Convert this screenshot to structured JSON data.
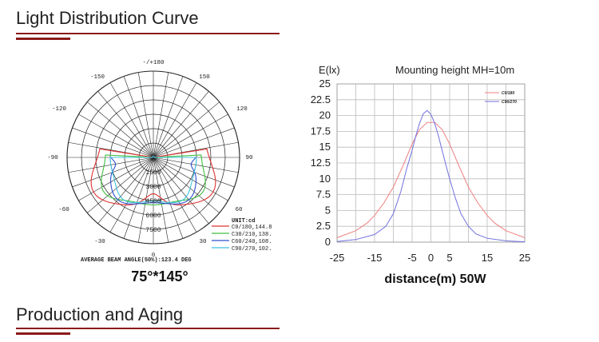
{
  "sections": {
    "light_distribution_title": "Light Distribution Curve",
    "production_title": "Production and Aging"
  },
  "polar": {
    "angle_labels": [
      "-/+180",
      "-150",
      "150",
      "-120",
      "120",
      "-90",
      "90",
      "-60",
      "60",
      "-30",
      "30",
      "0"
    ],
    "intensity_labels": [
      "1500",
      "3000",
      "4500",
      "6000",
      "7500"
    ],
    "unit": "UNIT:cd",
    "legend": [
      {
        "label": "C0/180,144.8",
        "color": "#e03030"
      },
      {
        "label": "C30/210,138.",
        "color": "#40c040"
      },
      {
        "label": "C60/240,108.",
        "color": "#3050d0"
      },
      {
        "label": "C90/270,102.",
        "color": "#40c0e0"
      }
    ],
    "beam_angle": "AVERAGE BEAM ANGLE(50%):123.4 DEG",
    "caption": "75°*145°"
  },
  "chart_data": {
    "type": "line",
    "title": "Mounting height  MH=10m",
    "ylabel": "E(lx)",
    "xlabel": "distance(m) 50W",
    "xlim": [
      -25,
      25
    ],
    "ylim": [
      0,
      25
    ],
    "x_ticks": [
      "-25",
      "-15",
      "-5",
      "0",
      "5",
      "15",
      "25"
    ],
    "x_tick_values": [
      -25,
      -15,
      -5,
      0,
      5,
      15,
      25
    ],
    "y_ticks": [
      "25",
      "22.5",
      "20",
      "17.5",
      "15",
      "12.5",
      "10",
      "7.5",
      "5",
      "2.5",
      "0"
    ],
    "y_tick_values": [
      25,
      22.5,
      20,
      17.5,
      15,
      12.5,
      10,
      7.5,
      5,
      2.5,
      0
    ],
    "grid": true,
    "legend_position": "top-right",
    "series": [
      {
        "name": "C0/180",
        "color": "#f08080",
        "x": [
          -25,
          -20,
          -17,
          -15,
          -12.5,
          -10,
          -7.5,
          -5,
          -3,
          -1,
          1,
          3,
          5,
          7.5,
          10,
          12.5,
          15,
          17,
          20,
          25
        ],
        "y": [
          0.7,
          1.8,
          3.0,
          4.2,
          6.2,
          8.7,
          12.0,
          15.5,
          17.8,
          18.9,
          18.9,
          17.8,
          15.5,
          12.0,
          8.7,
          6.2,
          4.2,
          3.0,
          1.8,
          0.7
        ]
      },
      {
        "name": "C90/270",
        "color": "#7070e0",
        "x": [
          -25,
          -20,
          -15,
          -12,
          -10,
          -8,
          -6.5,
          -5,
          -4,
          -3,
          -2,
          -1,
          0,
          1,
          2,
          3,
          4,
          5,
          6.5,
          8,
          10,
          12,
          15,
          20,
          25
        ],
        "y": [
          0.1,
          0.4,
          1.2,
          2.5,
          4.5,
          8.0,
          11.5,
          14.5,
          16.8,
          18.8,
          20.3,
          20.8,
          20.2,
          18.8,
          16.8,
          14.5,
          12.2,
          10.0,
          7.0,
          4.5,
          2.5,
          1.3,
          0.6,
          0.2,
          0.05
        ]
      }
    ]
  }
}
